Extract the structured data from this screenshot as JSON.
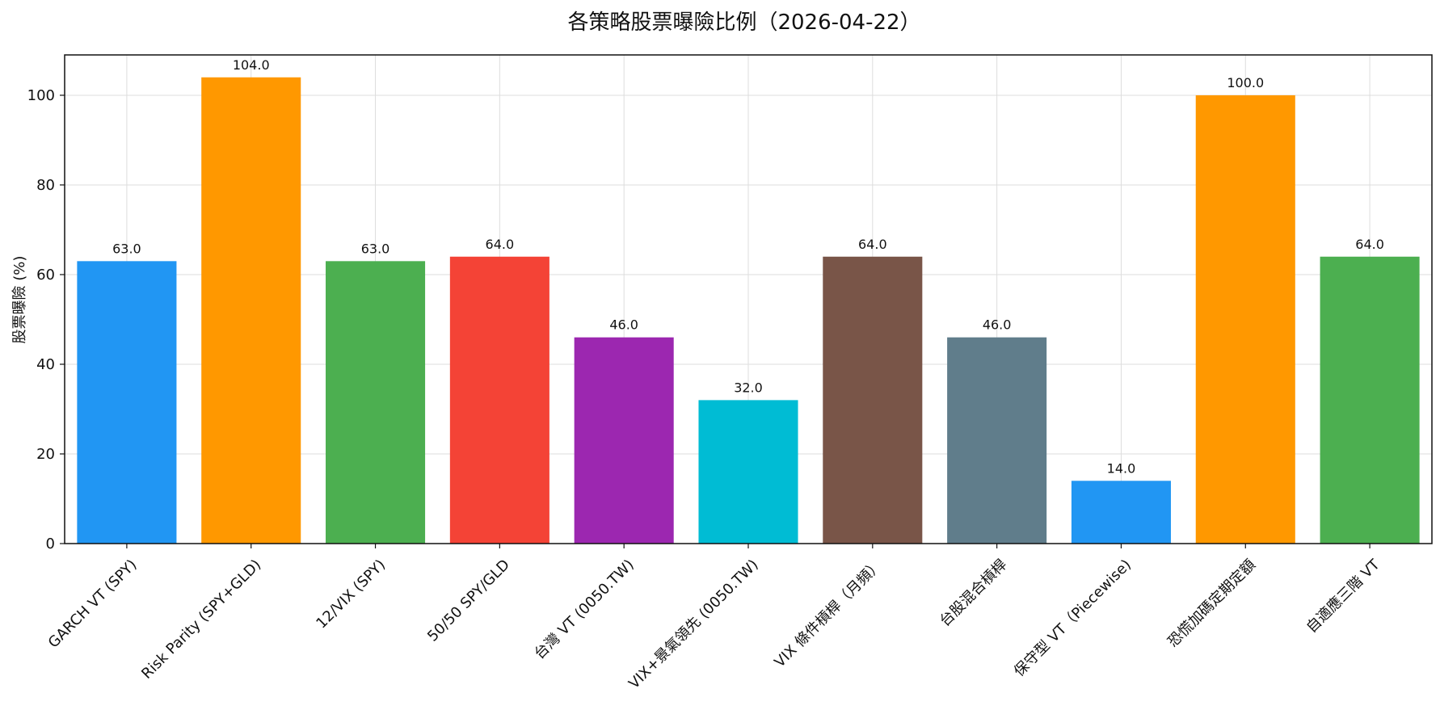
{
  "chart_data": {
    "type": "bar",
    "title": "各策略股票曝險比例（2026-04-22）",
    "xlabel": "",
    "ylabel": "股票曝險 (%)",
    "ylim": [
      0,
      109
    ],
    "yticks": [
      0,
      20,
      40,
      60,
      80,
      100
    ],
    "grid": true,
    "categories": [
      "GARCH VT (SPY)",
      "Risk Parity (SPY+GLD)",
      "12/VIX (SPY)",
      "50/50 SPY/GLD",
      "台灣 VT (0050.TW)",
      "VIX+景氣領先 (0050.TW)",
      "VIX 條件槓桿（月頻）",
      "台股混合槓桿",
      "保守型 VT（Piecewise)",
      "恐慌加碼定期定額",
      "自適應三階 VT"
    ],
    "values": [
      63,
      104,
      63,
      64,
      46,
      32,
      64,
      46,
      14,
      100,
      64
    ],
    "value_labels": [
      "63.0",
      "104.0",
      "63.0",
      "64.0",
      "46.0",
      "32.0",
      "64.0",
      "46.0",
      "14.0",
      "100.0",
      "64.0"
    ],
    "colors": [
      "#2196F3",
      "#FF9800",
      "#4CAF50",
      "#F44336",
      "#9C27B0",
      "#00BCD4",
      "#795548",
      "#607D8B",
      "#2196F3",
      "#FF9800",
      "#4CAF50"
    ]
  }
}
